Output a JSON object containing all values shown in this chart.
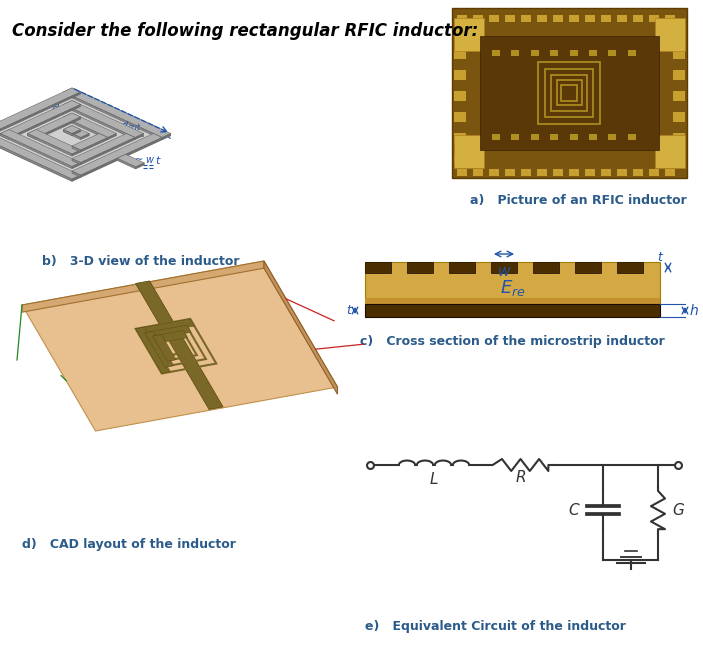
{
  "title": "Consider the following rectangular RFIC inductor:",
  "title_fontsize": 12,
  "title_color": "#000000",
  "bg_color": "#ffffff",
  "label_a": "a)   Picture of an RFIC inductor",
  "label_b": "b)   3-D view of the inductor",
  "label_c": "c)   Cross section of the microstrip inductor",
  "label_d": "d)   CAD layout of the inductor",
  "label_e": "e)   Equivalent Circuit of the inductor",
  "label_fontsize": 9,
  "label_color": "#2b5b8a",
  "annotation_color": "#2255aa",
  "cross_section": {
    "substrate_color": "#d4a843",
    "substrate_dark": "#c49030",
    "ground_color": "#4a2e00",
    "conductor_color": "#4a2e00",
    "arrow_color": "#2255aa"
  },
  "circuit": {
    "line_color": "#333333",
    "line_width": 1.5
  },
  "chip_colors": {
    "outer": "#8b6510",
    "inner_chip": "#6a4010",
    "pad_gold": "#c8a030",
    "corner_pad": "#d4b040",
    "spiral": [
      "#b08020",
      "#987010",
      "#806010",
      "#685000"
    ]
  },
  "board_colors": {
    "top": "#e8c090",
    "front": "#d4a870",
    "right": "#c09060",
    "trace": "#7a6828",
    "trace_edge": "#5a4808"
  }
}
